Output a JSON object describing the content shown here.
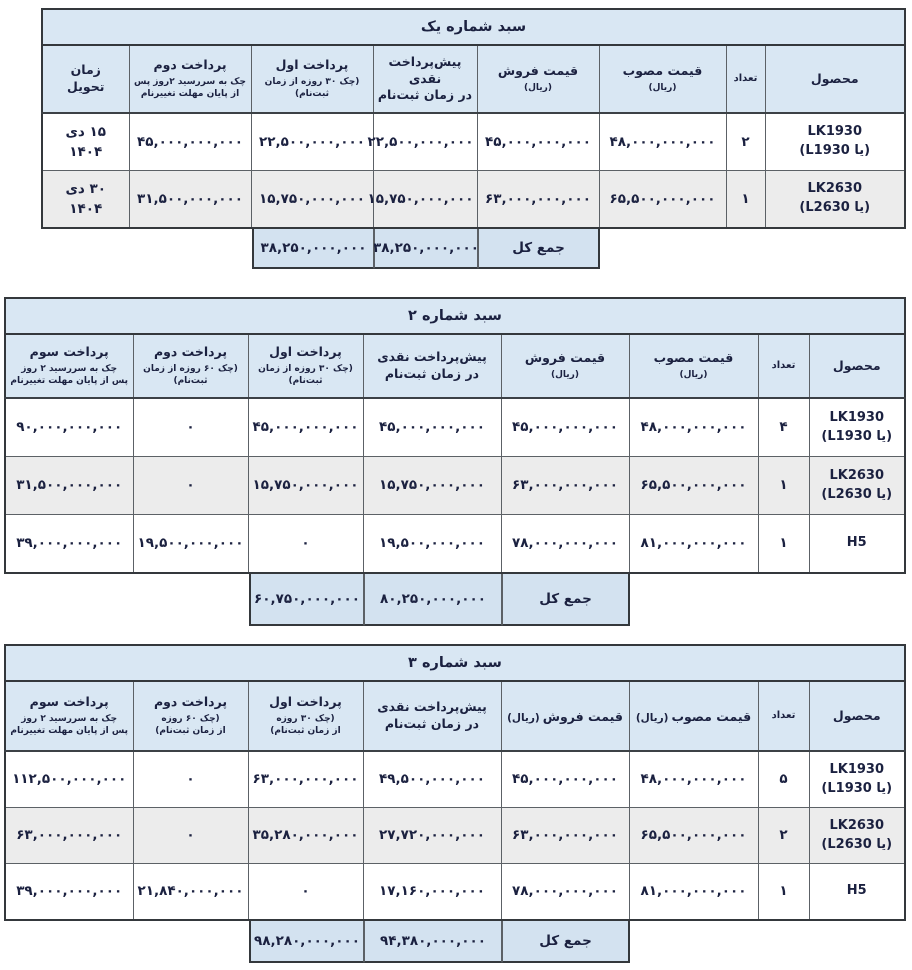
{
  "colors": {
    "header_bg": "#d9e7f3",
    "totals_bg": "#d3e2f0",
    "alt_row_bg": "#ececec",
    "border": "#5c6166",
    "frame": "#34383c",
    "text": "#1b2140"
  },
  "tables": [
    {
      "title": "سبد شماره یک",
      "columns": [
        {
          "key": "product",
          "label": "محصول",
          "sub": ""
        },
        {
          "key": "qty",
          "label": "تعداد",
          "sub": ""
        },
        {
          "key": "approved",
          "label": "قیمت مصوب",
          "sub": "(ریال)"
        },
        {
          "key": "sale",
          "label": "قیمت فروش",
          "sub": "(ریال)"
        },
        {
          "key": "cash",
          "label": "پیش‌پرداخت نقدی\nدر زمان ثبت‌نام",
          "sub": ""
        },
        {
          "key": "first",
          "label": "پرداخت اول",
          "sub": "(چک ۳۰ روزه از زمان\nثبت‌نام)"
        },
        {
          "key": "second",
          "label": "پرداخت دوم",
          "sub": "چک به سررسید ۲روز پس\nاز پایان مهلت تغییرنام"
        },
        {
          "key": "delivery",
          "label": "زمان\nتحویل",
          "sub": ""
        }
      ],
      "rows": [
        {
          "cells": [
            "LK1930\n(یا L1930)",
            "۲",
            "۴۸,۰۰۰,۰۰۰,۰۰۰",
            "۴۵,۰۰۰,۰۰۰,۰۰۰",
            "۲۲,۵۰۰,۰۰۰,۰۰۰",
            "۲۲,۵۰۰,۰۰۰,۰۰۰",
            "۴۵,۰۰۰,۰۰۰,۰۰۰",
            "۱۵ دی\n۱۴۰۴"
          ]
        },
        {
          "cells": [
            "LK2630\n(یا L2630)",
            "۱",
            "۶۵,۵۰۰,۰۰۰,۰۰۰",
            "۶۳,۰۰۰,۰۰۰,۰۰۰",
            "۱۵,۷۵۰,۰۰۰,۰۰۰",
            "۱۵,۷۵۰,۰۰۰,۰۰۰",
            "۳۱,۵۰۰,۰۰۰,۰۰۰",
            "۳۰ دی\n۱۴۰۴"
          ]
        }
      ],
      "total": {
        "label": "جمع کل",
        "cash": "۳۸,۲۵۰,۰۰۰,۰۰۰",
        "first": "۳۸,۲۵۰,۰۰۰,۰۰۰"
      }
    },
    {
      "title": "سبد شماره ۲",
      "columns": [
        {
          "key": "product",
          "label": "محصول",
          "sub": ""
        },
        {
          "key": "qty",
          "label": "تعداد",
          "sub": ""
        },
        {
          "key": "approved",
          "label": "قیمت مصوب",
          "sub": "(ریال)"
        },
        {
          "key": "sale",
          "label": "قیمت فروش",
          "sub": "(ریال)"
        },
        {
          "key": "cash",
          "label": "پیش‌پرداخت نقدی\nدر زمان ثبت‌نام",
          "sub": ""
        },
        {
          "key": "first",
          "label": "پرداخت اول",
          "sub": "(چک ۳۰ روزه از زمان\nثبت‌نام)"
        },
        {
          "key": "second",
          "label": "پرداخت دوم",
          "sub": "(چک ۶۰ روزه از زمان\nثبت‌نام)"
        },
        {
          "key": "third",
          "label": "پرداخت سوم",
          "sub": "چک به سررسید ۲ روز\nپس از پایان مهلت تغییرنام"
        }
      ],
      "rows": [
        {
          "cells": [
            "LK1930\n(یا L1930)",
            "۴",
            "۴۸,۰۰۰,۰۰۰,۰۰۰",
            "۴۵,۰۰۰,۰۰۰,۰۰۰",
            "۴۵,۰۰۰,۰۰۰,۰۰۰",
            "۴۵,۰۰۰,۰۰۰,۰۰۰",
            "۰",
            "۹۰,۰۰۰,۰۰۰,۰۰۰"
          ]
        },
        {
          "cells": [
            "LK2630\n(یا L2630)",
            "۱",
            "۶۵,۵۰۰,۰۰۰,۰۰۰",
            "۶۳,۰۰۰,۰۰۰,۰۰۰",
            "۱۵,۷۵۰,۰۰۰,۰۰۰",
            "۱۵,۷۵۰,۰۰۰,۰۰۰",
            "۰",
            "۳۱,۵۰۰,۰۰۰,۰۰۰"
          ]
        },
        {
          "cells": [
            "H5",
            "۱",
            "۸۱,۰۰۰,۰۰۰,۰۰۰",
            "۷۸,۰۰۰,۰۰۰,۰۰۰",
            "۱۹,۵۰۰,۰۰۰,۰۰۰",
            "۰",
            "۱۹,۵۰۰,۰۰۰,۰۰۰",
            "۳۹,۰۰۰,۰۰۰,۰۰۰"
          ]
        }
      ],
      "total": {
        "label": "جمع کل",
        "cash": "۸۰,۲۵۰,۰۰۰,۰۰۰",
        "first": "۶۰,۷۵۰,۰۰۰,۰۰۰"
      }
    },
    {
      "title": "سبد شماره ۳",
      "columns": [
        {
          "key": "product",
          "label": "محصول",
          "sub": ""
        },
        {
          "key": "qty",
          "label": "تعداد",
          "sub": ""
        },
        {
          "key": "approved",
          "label": "قیمت مصوب",
          "sub": "(ریال)"
        },
        {
          "key": "sale",
          "label": "قیمت فروش",
          "sub": "(ریال)"
        },
        {
          "key": "cash",
          "label": "پیش‌پرداخت نقدی\nدر زمان ثبت‌نام",
          "sub": ""
        },
        {
          "key": "first",
          "label": "پرداخت اول",
          "sub": "(چک ۳۰ روزه\nاز زمان ثبت‌نام)"
        },
        {
          "key": "second",
          "label": "پرداخت دوم",
          "sub": "(چک ۶۰ روزه\nاز زمان ثبت‌نام)"
        },
        {
          "key": "third",
          "label": "پرداخت سوم",
          "sub": "چک به سررسید ۲ روز\nپس از پایان مهلت تغییرنام"
        }
      ],
      "rows": [
        {
          "cells": [
            "LK1930\n(یا L1930)",
            "۵",
            "۴۸,۰۰۰,۰۰۰,۰۰۰",
            "۴۵,۰۰۰,۰۰۰,۰۰۰",
            "۴۹,۵۰۰,۰۰۰,۰۰۰",
            "۶۳,۰۰۰,۰۰۰,۰۰۰",
            "۰",
            "۱۱۲,۵۰۰,۰۰۰,۰۰۰"
          ]
        },
        {
          "cells": [
            "LK2630\n(یا L2630)",
            "۲",
            "۶۵,۵۰۰,۰۰۰,۰۰۰",
            "۶۳,۰۰۰,۰۰۰,۰۰۰",
            "۲۷,۷۲۰,۰۰۰,۰۰۰",
            "۳۵,۲۸۰,۰۰۰,۰۰۰",
            "۰",
            "۶۳,۰۰۰,۰۰۰,۰۰۰"
          ]
        },
        {
          "cells": [
            "H5",
            "۱",
            "۸۱,۰۰۰,۰۰۰,۰۰۰",
            "۷۸,۰۰۰,۰۰۰,۰۰۰",
            "۱۷,۱۶۰,۰۰۰,۰۰۰",
            "۰",
            "۲۱,۸۴۰,۰۰۰,۰۰۰",
            "۳۹,۰۰۰,۰۰۰,۰۰۰"
          ]
        }
      ],
      "total": {
        "label": "جمع کل",
        "cash": "۹۴,۳۸۰,۰۰۰,۰۰۰",
        "first": "۹۸,۲۸۰,۰۰۰,۰۰۰"
      }
    }
  ]
}
